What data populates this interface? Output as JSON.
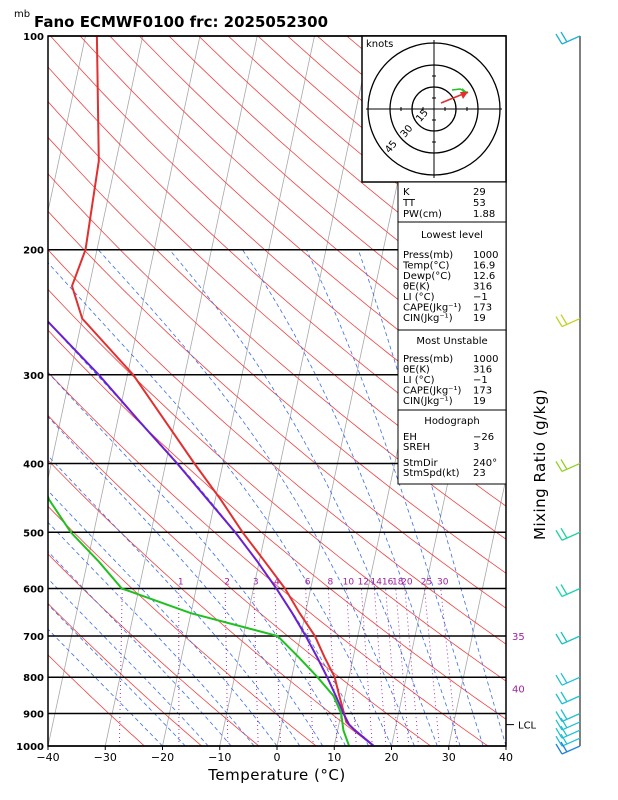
{
  "chart_data": {
    "type": "line",
    "title": "Fano ECMWF0100  frc: 2025052300",
    "units_label": "mb",
    "xlabel": "Temperature (°C)",
    "ylabel_right": "Mixing Ratio (g/kg)",
    "xlim": [
      -40,
      40
    ],
    "ylim": [
      1000,
      100
    ],
    "x_ticks": [
      -40,
      -30,
      -20,
      -10,
      0,
      10,
      20,
      30,
      40
    ],
    "p_ticks": [
      100,
      200,
      300,
      400,
      500,
      600,
      700,
      800,
      900,
      1000
    ],
    "mixing_ratio_labels": [
      "1",
      "2",
      "3",
      "4",
      "6",
      "8",
      "10",
      "12",
      "14",
      "16",
      "18",
      "20",
      "25",
      "30"
    ],
    "theta_e_labels": [
      {
        "p": 700,
        "text": "35"
      },
      {
        "p": 830,
        "text": "40"
      }
    ],
    "lcl_label": "LCL",
    "lcl_pressure": 933,
    "series": [
      {
        "name": "Temperature",
        "color": "#e03030",
        "points": [
          {
            "p": 1000,
            "t": 16.9
          },
          {
            "p": 950,
            "t": 13.0
          },
          {
            "p": 925,
            "t": 11.2
          },
          {
            "p": 900,
            "t": 10.5
          },
          {
            "p": 850,
            "t": 9.0
          },
          {
            "p": 800,
            "t": 7.5
          },
          {
            "p": 750,
            "t": 5.0
          },
          {
            "p": 700,
            "t": 2.5
          },
          {
            "p": 650,
            "t": -1.0
          },
          {
            "p": 600,
            "t": -4.5
          },
          {
            "p": 550,
            "t": -9.0
          },
          {
            "p": 500,
            "t": -14.0
          },
          {
            "p": 450,
            "t": -19.0
          },
          {
            "p": 400,
            "t": -25.0
          },
          {
            "p": 350,
            "t": -31.5
          },
          {
            "p": 300,
            "t": -39.0
          },
          {
            "p": 250,
            "t": -50.0
          },
          {
            "p": 225,
            "t": -53.0
          },
          {
            "p": 200,
            "t": -52.0
          },
          {
            "p": 150,
            "t": -53.0
          },
          {
            "p": 100,
            "t": -58.0
          }
        ]
      },
      {
        "name": "Dewpoint",
        "color": "#20c020",
        "points": [
          {
            "p": 1000,
            "t": 12.6
          },
          {
            "p": 950,
            "t": 11.0
          },
          {
            "p": 925,
            "t": 10.5
          },
          {
            "p": 900,
            "t": 10.0
          },
          {
            "p": 850,
            "t": 8.0
          },
          {
            "p": 800,
            "t": 4.5
          },
          {
            "p": 750,
            "t": 0.5
          },
          {
            "p": 700,
            "t": -4.0
          },
          {
            "p": 650,
            "t": -20.0
          },
          {
            "p": 600,
            "t": -33.0
          },
          {
            "p": 550,
            "t": -38.0
          },
          {
            "p": 500,
            "t": -44.0
          },
          {
            "p": 450,
            "t": -49.0
          },
          {
            "p": 400,
            "t": -53.0
          },
          {
            "p": 350,
            "t": -61.0
          },
          {
            "p": 300,
            "t": -70.0
          },
          {
            "p": 250,
            "t": -80.0
          },
          {
            "p": 200,
            "t": -82.0
          },
          {
            "p": 150,
            "t": -83.0
          },
          {
            "p": 100,
            "t": -85.0
          }
        ]
      },
      {
        "name": "Parcel",
        "color": "#6a1fd0",
        "points": [
          {
            "p": 1000,
            "t": 16.9
          },
          {
            "p": 950,
            "t": 13.0
          },
          {
            "p": 933,
            "t": 11.8
          },
          {
            "p": 900,
            "t": 10.4
          },
          {
            "p": 850,
            "t": 8.4
          },
          {
            "p": 800,
            "t": 6.2
          },
          {
            "p": 750,
            "t": 3.7
          },
          {
            "p": 700,
            "t": 0.9
          },
          {
            "p": 650,
            "t": -2.3
          },
          {
            "p": 600,
            "t": -6.0
          },
          {
            "p": 550,
            "t": -10.3
          },
          {
            "p": 500,
            "t": -15.3
          },
          {
            "p": 450,
            "t": -21.3
          },
          {
            "p": 400,
            "t": -28.0
          },
          {
            "p": 350,
            "t": -36.0
          },
          {
            "p": 300,
            "t": -45.0
          },
          {
            "p": 250,
            "t": -56.5
          },
          {
            "p": 200,
            "t": -69.0
          },
          {
            "p": 150,
            "t": -84.0
          },
          {
            "p": 125,
            "t": -92.0
          }
        ]
      }
    ],
    "hodograph": {
      "units": "knots",
      "rings": [
        15,
        30,
        45
      ],
      "ring_labels": [
        "15",
        "30",
        "45"
      ]
    },
    "indices": {
      "top": [
        {
          "label": "K",
          "value": "29"
        },
        {
          "label": "TT",
          "value": "53"
        },
        {
          "label": "PW(cm)",
          "value": "1.88"
        }
      ],
      "lowest_level": {
        "header": "Lowest level",
        "rows": [
          {
            "label": "Press(mb)",
            "value": "1000"
          },
          {
            "label": "Temp(°C)",
            "value": "16.9"
          },
          {
            "label": "Dewp(°C)",
            "value": "12.6"
          },
          {
            "label": "θE(K)",
            "value": "316"
          },
          {
            "label": "LI (°C)",
            "value": "−1"
          },
          {
            "label": "CAPE(Jkg⁻¹)",
            "value": "173"
          },
          {
            "label": "CIN(Jkg⁻¹)",
            "value": "19"
          }
        ]
      },
      "most_unstable": {
        "header": "Most Unstable",
        "rows": [
          {
            "label": "Press(mb)",
            "value": "1000"
          },
          {
            "label": "θE(K)",
            "value": "316"
          },
          {
            "label": "LI (°C)",
            "value": "−1"
          },
          {
            "label": "CAPE(Jkg⁻¹)",
            "value": "173"
          },
          {
            "label": "CIN(Jkg⁻¹)",
            "value": "19"
          }
        ]
      },
      "hodograph_info": {
        "header": "Hodograph",
        "rows": [
          {
            "label": "EH",
            "value": "−26"
          },
          {
            "label": "SREH",
            "value": "3"
          },
          {
            "label": "StmDir",
            "value": "240°"
          },
          {
            "label": "StmSpd(kt)",
            "value": "23"
          }
        ]
      }
    }
  }
}
